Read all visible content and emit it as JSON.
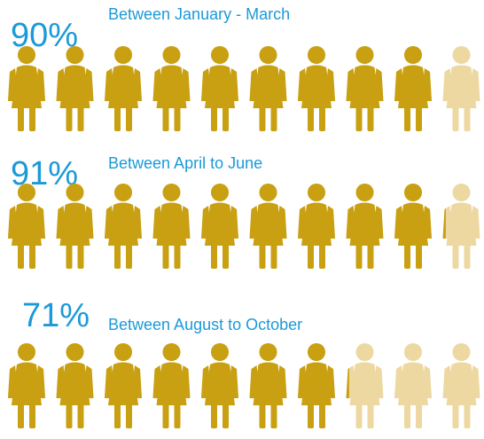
{
  "chart_data": {
    "type": "pictograph",
    "categories": [
      "Between January - March",
      "Between April to June",
      "Between August to October"
    ],
    "values": [
      90,
      91,
      71
    ],
    "value_labels": [
      "90%",
      "91%",
      "71%"
    ],
    "xlim": [
      0,
      100
    ],
    "color": "#c8a012",
    "empty_color": "#ecd8a0"
  }
}
